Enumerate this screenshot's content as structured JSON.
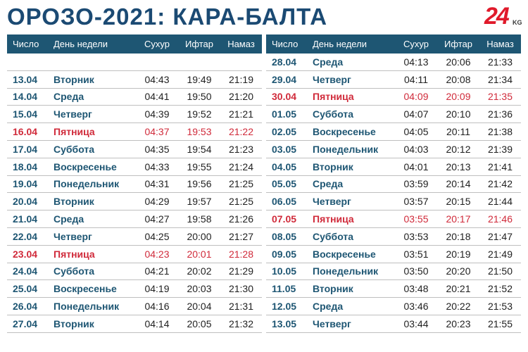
{
  "title": "ОРОЗО-2021: КАРА-БАЛТА",
  "logo": {
    "number": "24",
    "suffix": "KG"
  },
  "columns": [
    "Число",
    "День недели",
    "Сухур",
    "Ифтар",
    "Намаз"
  ],
  "highlight_color": "#d02a3a",
  "header_color": "#1e5673",
  "left_rows": [
    {
      "date": "13.04",
      "day": "Вторник",
      "suhur": "04:43",
      "iftar": "19:49",
      "namaz": "21:19",
      "friday": false
    },
    {
      "date": "14.04",
      "day": "Среда",
      "suhur": "04:41",
      "iftar": "19:50",
      "namaz": "21:20",
      "friday": false
    },
    {
      "date": "15.04",
      "day": "Четверг",
      "suhur": "04:39",
      "iftar": "19:52",
      "namaz": "21:21",
      "friday": false
    },
    {
      "date": "16.04",
      "day": "Пятница",
      "suhur": "04:37",
      "iftar": "19:53",
      "namaz": "21:22",
      "friday": true
    },
    {
      "date": "17.04",
      "day": "Суббота",
      "suhur": "04:35",
      "iftar": "19:54",
      "namaz": "21:23",
      "friday": false
    },
    {
      "date": "18.04",
      "day": "Воскресенье",
      "suhur": "04:33",
      "iftar": "19:55",
      "namaz": "21:24",
      "friday": false
    },
    {
      "date": "19.04",
      "day": "Понедельник",
      "suhur": "04:31",
      "iftar": "19:56",
      "namaz": "21:25",
      "friday": false
    },
    {
      "date": "20.04",
      "day": "Вторник",
      "suhur": "04:29",
      "iftar": "19:57",
      "namaz": "21:25",
      "friday": false
    },
    {
      "date": "21.04",
      "day": "Среда",
      "suhur": "04:27",
      "iftar": "19:58",
      "namaz": "21:26",
      "friday": false
    },
    {
      "date": "22.04",
      "day": "Четверг",
      "suhur": "04:25",
      "iftar": "20:00",
      "namaz": "21:27",
      "friday": false
    },
    {
      "date": "23.04",
      "day": "Пятница",
      "suhur": "04:23",
      "iftar": "20:01",
      "namaz": "21:28",
      "friday": true
    },
    {
      "date": "24.04",
      "day": "Суббота",
      "suhur": "04:21",
      "iftar": "20:02",
      "namaz": "21:29",
      "friday": false
    },
    {
      "date": "25.04",
      "day": "Воскресенье",
      "suhur": "04:19",
      "iftar": "20:03",
      "namaz": "21:30",
      "friday": false
    },
    {
      "date": "26.04",
      "day": "Понедельник",
      "suhur": "04:16",
      "iftar": "20:04",
      "namaz": "21:31",
      "friday": false
    },
    {
      "date": "27.04",
      "day": "Вторник",
      "suhur": "04:14",
      "iftar": "20:05",
      "namaz": "21:32",
      "friday": false
    }
  ],
  "right_rows": [
    {
      "date": "28.04",
      "day": "Среда",
      "suhur": "04:13",
      "iftar": "20:06",
      "namaz": "21:33",
      "friday": false
    },
    {
      "date": "29.04",
      "day": "Четверг",
      "suhur": "04:11",
      "iftar": "20:08",
      "namaz": "21:34",
      "friday": false
    },
    {
      "date": "30.04",
      "day": "Пятница",
      "suhur": "04:09",
      "iftar": "20:09",
      "namaz": "21:35",
      "friday": true
    },
    {
      "date": "01.05",
      "day": "Суббота",
      "suhur": "04:07",
      "iftar": "20:10",
      "namaz": "21:36",
      "friday": false
    },
    {
      "date": "02.05",
      "day": "Воскресенье",
      "suhur": "04:05",
      "iftar": "20:11",
      "namaz": "21:38",
      "friday": false
    },
    {
      "date": "03.05",
      "day": "Понедельник",
      "suhur": "04:03",
      "iftar": "20:12",
      "namaz": "21:39",
      "friday": false
    },
    {
      "date": "04.05",
      "day": "Вторник",
      "suhur": "04:01",
      "iftar": "20:13",
      "namaz": "21:41",
      "friday": false
    },
    {
      "date": "05.05",
      "day": "Среда",
      "suhur": "03:59",
      "iftar": "20:14",
      "namaz": "21:42",
      "friday": false
    },
    {
      "date": "06.05",
      "day": "Четверг",
      "suhur": "03:57",
      "iftar": "20:15",
      "namaz": "21:44",
      "friday": false
    },
    {
      "date": "07.05",
      "day": "Пятница",
      "suhur": "03:55",
      "iftar": "20:17",
      "namaz": "21:46",
      "friday": true
    },
    {
      "date": "08.05",
      "day": "Суббота",
      "suhur": "03:53",
      "iftar": "20:18",
      "namaz": "21:47",
      "friday": false
    },
    {
      "date": "09.05",
      "day": "Воскресенье",
      "suhur": "03:51",
      "iftar": "20:19",
      "namaz": "21:49",
      "friday": false
    },
    {
      "date": "10.05",
      "day": "Понедельник",
      "suhur": "03:50",
      "iftar": "20:20",
      "namaz": "21:50",
      "friday": false
    },
    {
      "date": "11.05",
      "day": "Вторник",
      "suhur": "03:48",
      "iftar": "20:21",
      "namaz": "21:52",
      "friday": false
    },
    {
      "date": "12.05",
      "day": "Среда",
      "suhur": "03:46",
      "iftar": "20:22",
      "namaz": "21:53",
      "friday": false
    },
    {
      "date": "13.05",
      "day": "Четверг",
      "suhur": "03:44",
      "iftar": "20:23",
      "namaz": "21:55",
      "friday": false
    }
  ]
}
